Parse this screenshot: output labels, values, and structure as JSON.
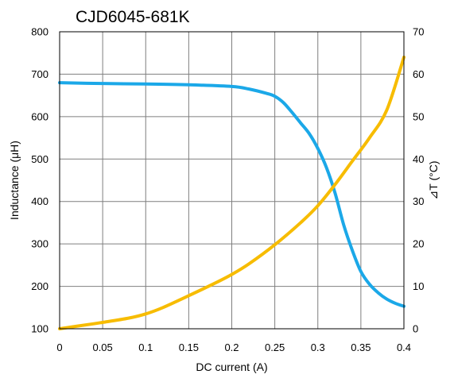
{
  "chart_data": {
    "type": "line",
    "title": "CJD6045-681K",
    "xlabel": "DC current (A)",
    "ylabel_left": "Inductance (μH)",
    "ylabel_right": "⊿T (°C)",
    "xlim": [
      0,
      0.4
    ],
    "ylim_left": [
      100,
      800
    ],
    "ylim_right": [
      0,
      70
    ],
    "x_ticks": [
      "0",
      "0.05",
      "0.1",
      "0.15",
      "0.2",
      "0.25",
      "0.3",
      "0.35",
      "0.4"
    ],
    "y_left_ticks": [
      "100",
      "200",
      "300",
      "400",
      "500",
      "600",
      "700",
      "800"
    ],
    "y_right_ticks": [
      "0",
      "10",
      "20",
      "30",
      "40",
      "50",
      "60",
      "70"
    ],
    "grid": true,
    "series": [
      {
        "axis": "left",
        "color": "#1BA8E8",
        "x": [
          0,
          0.05,
          0.1,
          0.15,
          0.2,
          0.22,
          0.24,
          0.25,
          0.26,
          0.27,
          0.28,
          0.29,
          0.3,
          0.31,
          0.32,
          0.33,
          0.34,
          0.35,
          0.36,
          0.37,
          0.38,
          0.39,
          0.4
        ],
        "values": [
          680,
          678,
          677,
          675,
          671,
          665,
          655,
          648,
          633,
          610,
          585,
          560,
          525,
          480,
          420,
          345,
          285,
          235,
          205,
          185,
          170,
          160,
          153
        ]
      },
      {
        "axis": "right",
        "color": "#F7BC00",
        "x": [
          0,
          0.02,
          0.05,
          0.08,
          0.1,
          0.12,
          0.15,
          0.18,
          0.2,
          0.22,
          0.25,
          0.28,
          0.3,
          0.32,
          0.34,
          0.36,
          0.38,
          0.4
        ],
        "values": [
          0,
          0.6,
          1.5,
          2.5,
          3.5,
          5.0,
          7.8,
          10.7,
          12.8,
          15.3,
          19.8,
          25.0,
          29.0,
          34.0,
          39.5,
          45.0,
          51.5,
          64.0
        ]
      }
    ]
  }
}
